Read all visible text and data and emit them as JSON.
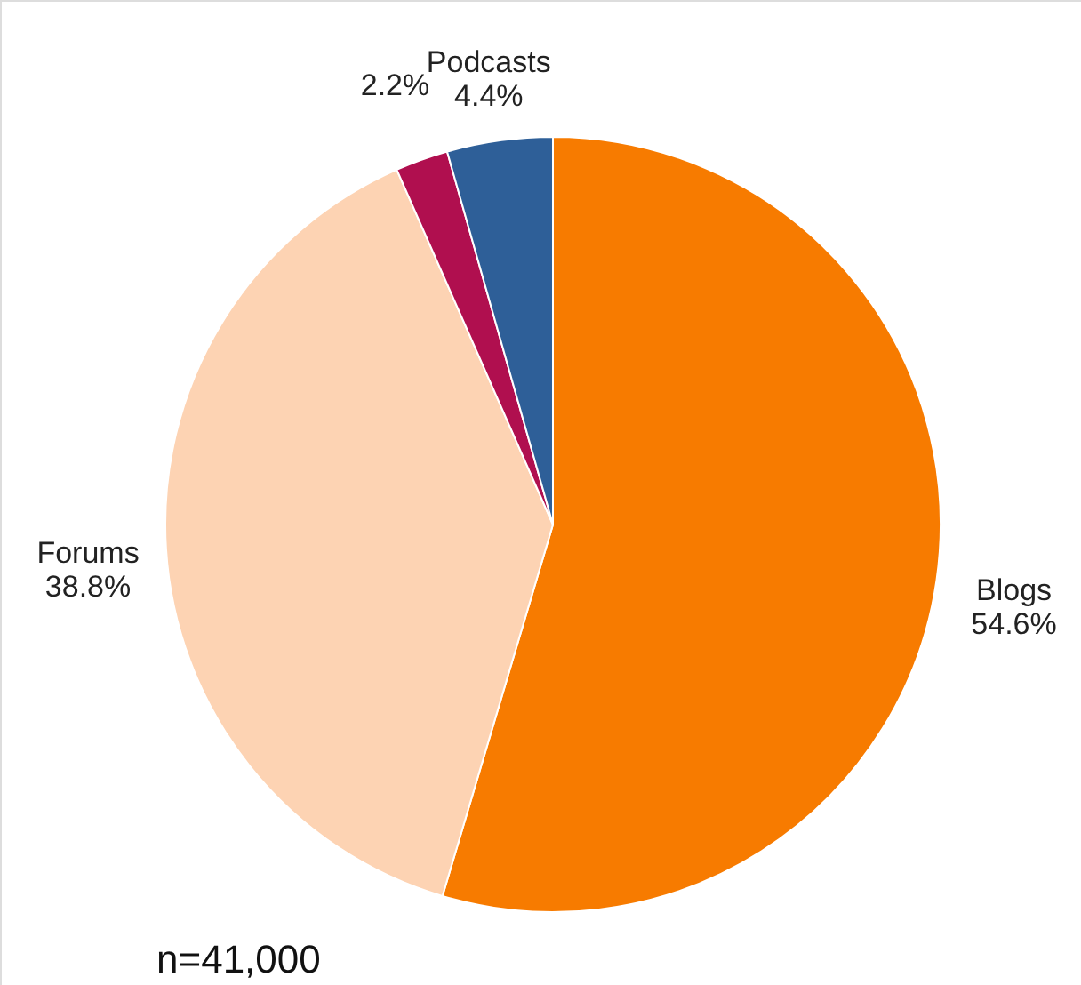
{
  "chart_data": {
    "type": "pie",
    "categories": [
      "Blogs",
      "Forums",
      null,
      "Podcasts"
    ],
    "values": [
      54.6,
      38.8,
      2.2,
      4.4
    ],
    "value_labels": [
      "54.6%",
      "38.8%",
      "2.2%",
      "4.4%"
    ],
    "colors": [
      "#f77b00",
      "#fdd3b3",
      "#b00f4f",
      "#2e5f98"
    ],
    "annotations": [
      "n=41,000"
    ]
  }
}
